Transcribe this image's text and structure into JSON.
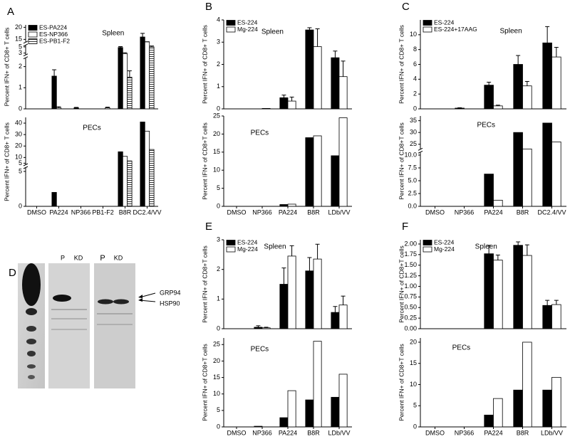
{
  "chart_data": [
    {
      "type": "bar",
      "panel_label": "A",
      "ylabel": "Percent IFN+ of CD8+ T cells",
      "annotation": "Spleen",
      "segments": [
        {
          "ylim": [
            0,
            2.4
          ],
          "yticks": [
            0,
            1,
            2
          ]
        },
        {
          "ylim": [
            2.5,
            5.5
          ],
          "yticks": [
            3,
            5
          ]
        },
        {
          "ylim": [
            14,
            21
          ],
          "yticks": [
            15,
            20
          ]
        }
      ],
      "series": [
        {
          "name": "ES-PA224",
          "color": "#000000",
          "values": [
            0,
            1.55,
            0.05,
            0,
            4.8,
            16
          ],
          "errors": [
            0,
            0.3,
            0.02,
            0,
            0.3,
            1.5
          ]
        },
        {
          "name": "ES-NP366",
          "color": "#ffffff",
          "values": [
            0,
            0.05,
            0,
            0,
            2.8,
            12
          ],
          "errors": [
            0,
            0.05,
            0,
            0,
            0.3,
            0.5
          ]
        },
        {
          "name": "ES-PB1-F2",
          "color": "#ffffff",
          "hatch": true,
          "values": [
            0,
            0,
            0,
            0.05,
            1.5,
            5
          ],
          "errors": [
            0,
            0,
            0,
            0.03,
            0.3,
            0.3
          ]
        }
      ]
    },
    {
      "type": "bar",
      "ylabel": "Percent IFN+ of CD8+ T cells",
      "annotation": "PECs",
      "categories": [
        "DMSO",
        "PA224",
        "NP366",
        "PB1-F2",
        "B8R",
        "DC2.4/VV"
      ],
      "segments": [
        {
          "ylim": [
            0,
            5.5
          ],
          "yticks": [
            0,
            5
          ]
        },
        {
          "ylim": [
            4,
            45
          ],
          "yticks": [
            5,
            10,
            20,
            30,
            40
          ]
        }
      ],
      "series": [
        {
          "color": "#000000",
          "values": [
            0,
            2,
            0,
            0,
            15,
            41
          ]
        },
        {
          "color": "#ffffff",
          "values": [
            0,
            0,
            0,
            0,
            11,
            33
          ]
        },
        {
          "color": "#ffffff",
          "hatch": true,
          "values": [
            0,
            0,
            0,
            0,
            7,
            17
          ]
        }
      ]
    },
    {
      "type": "bar",
      "panel_label": "B",
      "ylabel": "Percent IFN+ of CD8+ T cells",
      "annotation": "Spleen",
      "ylim": [
        0,
        4
      ],
      "yticks": [
        0,
        1,
        2,
        3,
        4
      ],
      "series": [
        {
          "name": "ES-224",
          "color": "#000000",
          "values": [
            0,
            0,
            0.5,
            3.55,
            2.3
          ],
          "errors": [
            0,
            0,
            0.12,
            0.1,
            0.3
          ]
        },
        {
          "name": "Mg-224",
          "color": "#ffffff",
          "values": [
            0,
            0.02,
            0.35,
            2.8,
            1.45
          ],
          "errors": [
            0,
            0,
            0.18,
            0.8,
            0.7
          ]
        }
      ]
    },
    {
      "type": "bar",
      "ylabel": "Percent IFN+ of CD8+T cells",
      "annotation": "PECs",
      "categories": [
        "DMSO",
        "NP366",
        "PA224",
        "B8R",
        "LDb/VV"
      ],
      "ylim": [
        0,
        25
      ],
      "yticks": [
        0,
        5,
        10,
        15,
        20,
        25
      ],
      "series": [
        {
          "color": "#000000",
          "values": [
            0,
            0,
            0.5,
            19,
            14
          ]
        },
        {
          "color": "#ffffff",
          "values": [
            0,
            0,
            0.6,
            19.5,
            24.5
          ]
        }
      ]
    },
    {
      "type": "bar",
      "panel_label": "C",
      "ylabel": "Percent IFN+ of CD8+ T cells",
      "annotation": "Spleen",
      "ylim": [
        0,
        12
      ],
      "yticks": [
        0,
        2,
        4,
        6,
        8,
        10
      ],
      "series": [
        {
          "name": "ES-224",
          "color": "#000000",
          "values": [
            0,
            0.1,
            3.2,
            6,
            8.9
          ],
          "errors": [
            0,
            0.05,
            0.4,
            1.2,
            2.2
          ]
        },
        {
          "name": "ES-224+17AAG",
          "color": "#ffffff",
          "values": [
            0,
            0,
            0.4,
            3.1,
            7
          ],
          "errors": [
            0,
            0,
            0.1,
            0.6,
            1.3
          ]
        }
      ]
    },
    {
      "type": "bar",
      "ylabel": "Percent IFN+ of CD8+T cells",
      "annotation": "PECs",
      "categories": [
        "DMSO",
        "NP366",
        "PA224",
        "B8R",
        "DC2.4/VV"
      ],
      "segments": [
        {
          "ylim": [
            0,
            10.5
          ],
          "yticks": [
            {
              "value": 0,
              "label": "0.0"
            },
            {
              "value": 2.5,
              "label": "2.5"
            },
            {
              "value": 5,
              "label": "5.0"
            },
            {
              "value": 7.5,
              "label": "7.5"
            },
            {
              "value": 10,
              "label": "10.0"
            }
          ]
        },
        {
          "ylim": [
            23,
            37
          ],
          "yticks": [
            25,
            30,
            35
          ]
        }
      ],
      "series": [
        {
          "color": "#000000",
          "values": [
            0,
            0,
            6.3,
            30,
            34
          ]
        },
        {
          "color": "#ffffff",
          "values": [
            0,
            0,
            1.2,
            17,
            26
          ]
        }
      ]
    },
    {
      "type": "bar",
      "panel_label": "E",
      "ylabel": "Percent IFN+ of CD8+T cells",
      "annotation": "Spleen",
      "ylim": [
        0,
        3
      ],
      "yticks": [
        0,
        1,
        2,
        3
      ],
      "series": [
        {
          "name": "ES-224",
          "color": "#000000",
          "values": [
            0,
            0.05,
            1.5,
            1.95,
            0.55
          ],
          "errors": [
            0,
            0.05,
            0.55,
            0.45,
            0.2
          ]
        },
        {
          "name": "Mg-224",
          "color": "#ffffff",
          "values": [
            0,
            0.03,
            2.45,
            2.35,
            0.8
          ],
          "errors": [
            0,
            0.02,
            0.35,
            0.5,
            0.3
          ]
        }
      ]
    },
    {
      "type": "bar",
      "ylabel": "Percent IFN+ of CD8+T cells",
      "annotation": "PECs",
      "categories": [
        "DMSO",
        "NP366",
        "PA224",
        "B8R",
        "LDb/VV"
      ],
      "ylim": [
        0,
        27
      ],
      "yticks": [
        0,
        5,
        10,
        15,
        20,
        25
      ],
      "series": [
        {
          "color": "#000000",
          "values": [
            0,
            0.2,
            2.8,
            8.2,
            9
          ]
        },
        {
          "color": "#ffffff",
          "values": [
            0,
            0,
            11,
            26,
            16
          ]
        }
      ]
    },
    {
      "type": "bar",
      "panel_label": "F",
      "ylabel": "Percent IFN+ of CD8+T cells",
      "annotation": "Spleen",
      "ylim": [
        0,
        2.1
      ],
      "yticks": [
        {
          "value": 0,
          "label": "0.00"
        },
        {
          "value": 0.25,
          "label": "0.25"
        },
        {
          "value": 0.5,
          "label": "0.50"
        },
        {
          "value": 0.75,
          "label": "0.75"
        },
        {
          "value": 1,
          "label": "1.00"
        },
        {
          "value": 1.25,
          "label": "1.25"
        },
        {
          "value": 1.5,
          "label": "1.50"
        },
        {
          "value": 1.75,
          "label": "1.75"
        },
        {
          "value": 2,
          "label": "2.00"
        }
      ],
      "series": [
        {
          "name": "ES-224",
          "color": "#000000",
          "values": [
            0,
            0,
            1.77,
            1.97,
            0.55
          ],
          "errors": [
            0,
            0,
            0.2,
            0.08,
            0.12
          ]
        },
        {
          "name": "Mg-224",
          "color": "#ffffff",
          "values": [
            0,
            0,
            1.62,
            1.73,
            0.57
          ],
          "errors": [
            0,
            0,
            0.12,
            0.25,
            0.1
          ]
        }
      ]
    },
    {
      "type": "bar",
      "ylabel": "Percent IFN+ of CD8+T cells",
      "annotation": "PECs",
      "categories": [
        "DMSO",
        "NP366",
        "PA224",
        "B8R",
        "LDb/VV"
      ],
      "ylim": [
        0,
        21
      ],
      "yticks": [
        0,
        5,
        10,
        15,
        20
      ],
      "series": [
        {
          "color": "#000000",
          "values": [
            0,
            0,
            2.8,
            8.7,
            8.7
          ]
        },
        {
          "color": "#ffffff",
          "values": [
            0,
            0,
            6.7,
            20,
            11.7
          ]
        }
      ]
    }
  ],
  "blot": {
    "panel_label": "D",
    "lane_labels": [
      "P",
      "KD",
      "P",
      "KD"
    ],
    "markers": [
      "GRP94",
      "HSP90"
    ]
  }
}
